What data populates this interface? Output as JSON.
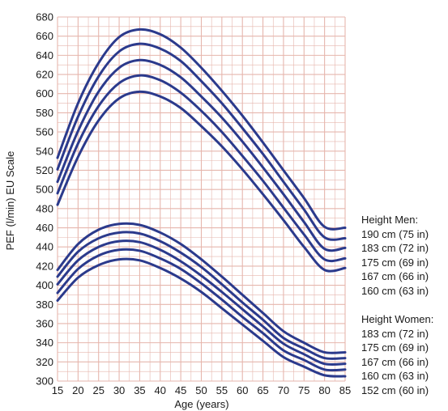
{
  "chart_data": {
    "type": "line",
    "xlabel": "Age (years)",
    "ylabel": "PEF (l/min) EU Scale",
    "xlim": [
      15,
      85
    ],
    "ylim": [
      300,
      680
    ],
    "x_ticks": [
      15,
      20,
      25,
      30,
      35,
      40,
      45,
      50,
      55,
      60,
      65,
      70,
      75,
      80,
      85
    ],
    "y_ticks": [
      300,
      320,
      340,
      360,
      380,
      400,
      420,
      440,
      460,
      480,
      500,
      520,
      540,
      560,
      580,
      600,
      620,
      640,
      660,
      680
    ],
    "grid": true,
    "line_color": "#2b3a8c",
    "grid_color": "#e6b6ad",
    "legend_placement": "right",
    "x": [
      15,
      20,
      25,
      30,
      35,
      40,
      45,
      50,
      55,
      60,
      65,
      70,
      75,
      80,
      85
    ],
    "groups": [
      {
        "title": "Height Men:",
        "series": [
          {
            "name": "190 cm (75 in)",
            "values": [
              533,
              590,
              632,
              659,
              667,
              662,
              648,
              627,
              603,
              577,
              549,
              520,
              491,
              461,
              460
            ]
          },
          {
            "name": "183 cm (72 in)",
            "values": [
              521,
              576,
              618,
              644,
              652,
              647,
              634,
              613,
              590,
              564,
              537,
              508,
              479,
              450,
              449
            ]
          },
          {
            "name": "175 cm (69 in)",
            "values": [
              508,
              561,
              602,
              627,
              635,
              630,
              617,
              597,
              575,
              550,
              523,
              495,
              466,
              438,
              439
            ]
          },
          {
            "name": "167 cm (66 in)",
            "values": [
              496,
              548,
              587,
              611,
              619,
              614,
              601,
              582,
              560,
              535,
              509,
              481,
              453,
              427,
              428
            ]
          },
          {
            "name": "160 cm (63 in)",
            "values": [
              484,
              534,
              572,
              595,
              602,
              597,
              585,
              566,
              545,
              521,
              495,
              468,
              440,
              416,
              418
            ]
          }
        ]
      },
      {
        "title": "Height Women:",
        "series": [
          {
            "name": "183 cm (72 in)",
            "values": [
              416,
              443,
              458,
              464,
              463,
              455,
              443,
              427,
              409,
              390,
              371,
              352,
              340,
              330,
              330
            ]
          },
          {
            "name": "175 cm (69 in)",
            "values": [
              409,
              435,
              449,
              455,
              454,
              446,
              434,
              419,
              401,
              382,
              364,
              345,
              334,
              324,
              324
            ]
          },
          {
            "name": "167 cm (66 in)",
            "values": [
              401,
              426,
              440,
              446,
              445,
              437,
              425,
              410,
              393,
              375,
              357,
              339,
              328,
              318,
              318
            ]
          },
          {
            "name": "160 cm (63 in)",
            "values": [
              392,
              417,
              431,
              437,
              436,
              428,
              417,
              402,
              385,
              367,
              350,
              332,
              322,
              312,
              312
            ]
          },
          {
            "name": "152 cm (60 in)",
            "values": [
              384,
              408,
              421,
              427,
              426,
              418,
              407,
              393,
              376,
              359,
              342,
              325,
              315,
              306,
              305
            ]
          }
        ]
      }
    ]
  }
}
